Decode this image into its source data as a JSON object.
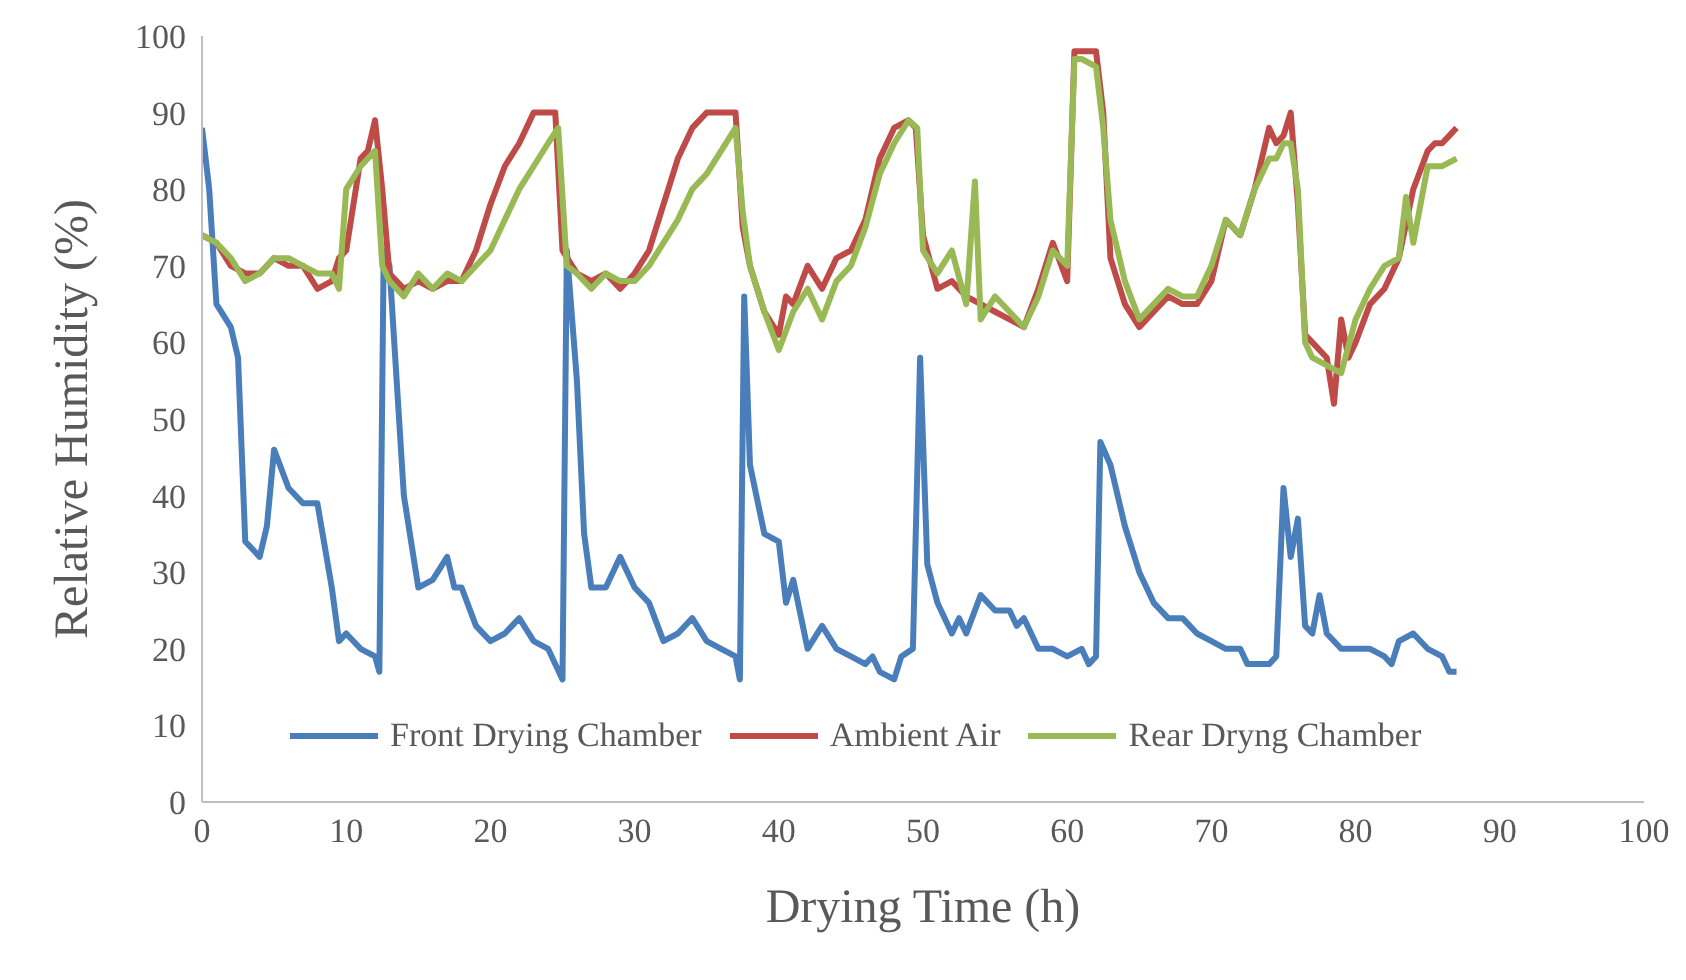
{
  "chart_data": {
    "type": "line",
    "xlabel": "Drying Time (h)",
    "ylabel": "Relative Humidity (%)",
    "xlim": [
      0,
      100
    ],
    "xticks": [
      0,
      10,
      20,
      30,
      40,
      50,
      60,
      70,
      80,
      90,
      100
    ],
    "ylim": [
      0,
      100
    ],
    "yticks": [
      0,
      10,
      20,
      30,
      40,
      50,
      60,
      70,
      80,
      90,
      100
    ],
    "grid": false,
    "legend": "bottom",
    "marker": "none",
    "line_style": "solid",
    "series": [
      {
        "name": "Front Drying Chamber",
        "color": "#4a7ebb",
        "x": [
          0,
          0.5,
          1,
          2,
          2.5,
          3,
          4,
          4.5,
          5,
          6,
          7,
          8,
          9,
          9.5,
          10,
          11,
          12,
          12.3,
          12.6,
          13,
          14,
          15,
          16,
          17,
          17.5,
          18,
          19,
          20,
          21,
          22,
          23,
          24,
          25,
          25.3,
          26,
          26.5,
          27,
          28,
          29,
          30,
          31,
          32,
          33,
          34,
          35,
          36,
          37,
          37.3,
          37.6,
          38,
          39,
          40,
          40.5,
          41,
          42,
          43,
          44,
          45,
          46,
          46.5,
          47,
          48,
          48.5,
          49.3,
          49.8,
          50.3,
          51,
          52,
          52.5,
          53,
          54,
          55,
          56,
          56.5,
          57,
          58,
          59,
          60,
          61,
          61.5,
          62,
          62.3,
          63,
          64,
          65,
          66,
          67,
          68,
          69,
          70,
          71,
          72,
          72.5,
          73,
          74,
          74.5,
          75,
          75.5,
          76,
          76.5,
          77,
          77.5,
          78,
          79,
          80,
          81,
          82,
          82.5,
          83,
          84,
          85,
          86,
          86.5,
          87
        ],
        "values": [
          88,
          80,
          65,
          62,
          58,
          34,
          32,
          36,
          46,
          41,
          39,
          39,
          28,
          21,
          22,
          20,
          19,
          17,
          72,
          70,
          40,
          28,
          29,
          32,
          28,
          28,
          23,
          21,
          22,
          24,
          21,
          20,
          16,
          72,
          55,
          35,
          28,
          28,
          32,
          28,
          26,
          21,
          22,
          24,
          21,
          20,
          19,
          16,
          66,
          44,
          35,
          34,
          26,
          29,
          20,
          23,
          20,
          19,
          18,
          19,
          17,
          16,
          19,
          20,
          58,
          31,
          26,
          22,
          24,
          22,
          27,
          25,
          25,
          23,
          24,
          20,
          20,
          19,
          20,
          18,
          19,
          47,
          44,
          36,
          30,
          26,
          24,
          24,
          22,
          21,
          20,
          20,
          18,
          18,
          18,
          19,
          41,
          32,
          37,
          23,
          22,
          27,
          22,
          20,
          20,
          20,
          19,
          18,
          21,
          22,
          20,
          19,
          17,
          17
        ]
      },
      {
        "name": "Ambient Air",
        "color": "#be4b48",
        "x": [
          0,
          1,
          2,
          3,
          4,
          5,
          6,
          7,
          8,
          9,
          9.5,
          10,
          11,
          11.5,
          12,
          12.5,
          13,
          14,
          15,
          16,
          17,
          18,
          19,
          20,
          21,
          22,
          23,
          24,
          24.5,
          25,
          26,
          27,
          28,
          29,
          30,
          31,
          32,
          33,
          34,
          35,
          36,
          37,
          37.5,
          38,
          39,
          40,
          40.5,
          41,
          42,
          43,
          44,
          45,
          46,
          47,
          48,
          49,
          49.5,
          50,
          51,
          52,
          53,
          54,
          55,
          56,
          57,
          58,
          59,
          60,
          60.5,
          61,
          62,
          62.5,
          63,
          64,
          65,
          66,
          67,
          68,
          69,
          70,
          71,
          72,
          73,
          74,
          74.5,
          75,
          75.5,
          76,
          76.5,
          77,
          78,
          78.5,
          79,
          79.5,
          80,
          81,
          82,
          83,
          84,
          85,
          85.5,
          86,
          86.5,
          87
        ],
        "values": [
          74,
          73,
          70,
          69,
          69,
          71,
          70,
          70,
          67,
          68,
          71,
          72,
          84,
          85,
          89,
          80,
          69,
          67,
          68,
          67,
          68,
          68,
          72,
          78,
          83,
          86,
          90,
          90,
          90,
          72,
          69,
          68,
          69,
          67,
          69,
          72,
          78,
          84,
          88,
          90,
          90,
          90,
          75,
          70,
          64,
          61,
          66,
          65,
          70,
          67,
          71,
          72,
          76,
          84,
          88,
          89,
          88,
          74,
          67,
          68,
          66,
          65,
          64,
          63,
          62,
          67,
          73,
          68,
          98,
          98,
          98,
          90,
          71,
          65,
          62,
          64,
          66,
          65,
          65,
          68,
          76,
          74,
          80,
          88,
          86,
          87,
          90,
          78,
          61,
          60,
          58,
          52,
          63,
          58,
          60,
          65,
          67,
          71,
          80,
          85,
          86,
          86,
          87,
          88
        ]
      },
      {
        "name": "Rear Dryng Chamber",
        "color": "#98b954",
        "x": [
          0,
          1,
          2,
          3,
          4,
          5,
          6,
          7,
          8,
          9,
          9.5,
          10,
          11,
          12,
          12.5,
          13,
          14,
          15,
          16,
          17,
          18,
          19,
          20,
          21,
          22,
          23,
          24,
          24.7,
          25.3,
          26,
          27,
          28,
          29,
          30,
          31,
          32,
          33,
          34,
          35,
          36,
          37,
          37.5,
          38,
          39,
          40,
          41,
          42,
          43,
          44,
          45,
          46,
          47,
          48,
          49,
          49.6,
          50,
          51,
          52,
          53,
          53.6,
          54,
          55,
          56,
          57,
          58,
          59,
          60,
          60.5,
          61,
          62,
          62.5,
          63,
          64,
          65,
          66,
          67,
          68,
          69,
          70,
          71,
          72,
          73,
          74,
          74.5,
          75,
          75.5,
          76,
          76.5,
          77,
          78,
          79,
          80,
          81,
          82,
          83,
          83.5,
          84,
          85,
          86,
          87
        ],
        "values": [
          74,
          73,
          71,
          68,
          69,
          71,
          71,
          70,
          69,
          69,
          67,
          80,
          83,
          85,
          70,
          68,
          66,
          69,
          67,
          69,
          68,
          70,
          72,
          76,
          80,
          83,
          86,
          88,
          70,
          69,
          67,
          69,
          68,
          68,
          70,
          73,
          76,
          80,
          82,
          85,
          88,
          77,
          70,
          64,
          59,
          64,
          67,
          63,
          68,
          70,
          75,
          82,
          86,
          89,
          88,
          72,
          69,
          72,
          65,
          81,
          63,
          66,
          64,
          62,
          66,
          72,
          70,
          97,
          97,
          96,
          88,
          76,
          68,
          63,
          65,
          67,
          66,
          66,
          70,
          76,
          74,
          80,
          84,
          84,
          86,
          86,
          80,
          60,
          58,
          57,
          56,
          63,
          67,
          70,
          71,
          79,
          73,
          83,
          83,
          84
        ]
      }
    ]
  }
}
